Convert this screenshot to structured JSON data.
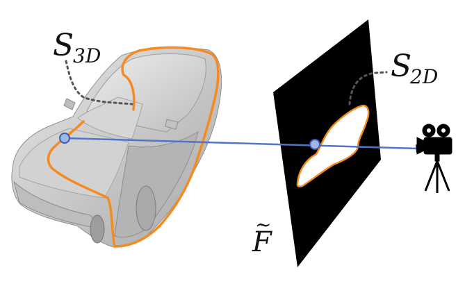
{
  "labels": {
    "s3d_main": "S",
    "s3d_sub": "3D",
    "s2d_main": "S",
    "s2d_sub": "2D",
    "f_label": "F",
    "f_accent": "~"
  },
  "colors": {
    "silhouette": "#f58a1f",
    "ray": "#4f74c8",
    "point_fill": "#9fb6e6",
    "point_stroke": "#3b5bab",
    "plane": "#000000",
    "car_body": "#c7c7c7",
    "car_shadow": "#9a9a9a",
    "camera": "#000000"
  },
  "icons": {
    "camera": "movie-camera-icon"
  }
}
